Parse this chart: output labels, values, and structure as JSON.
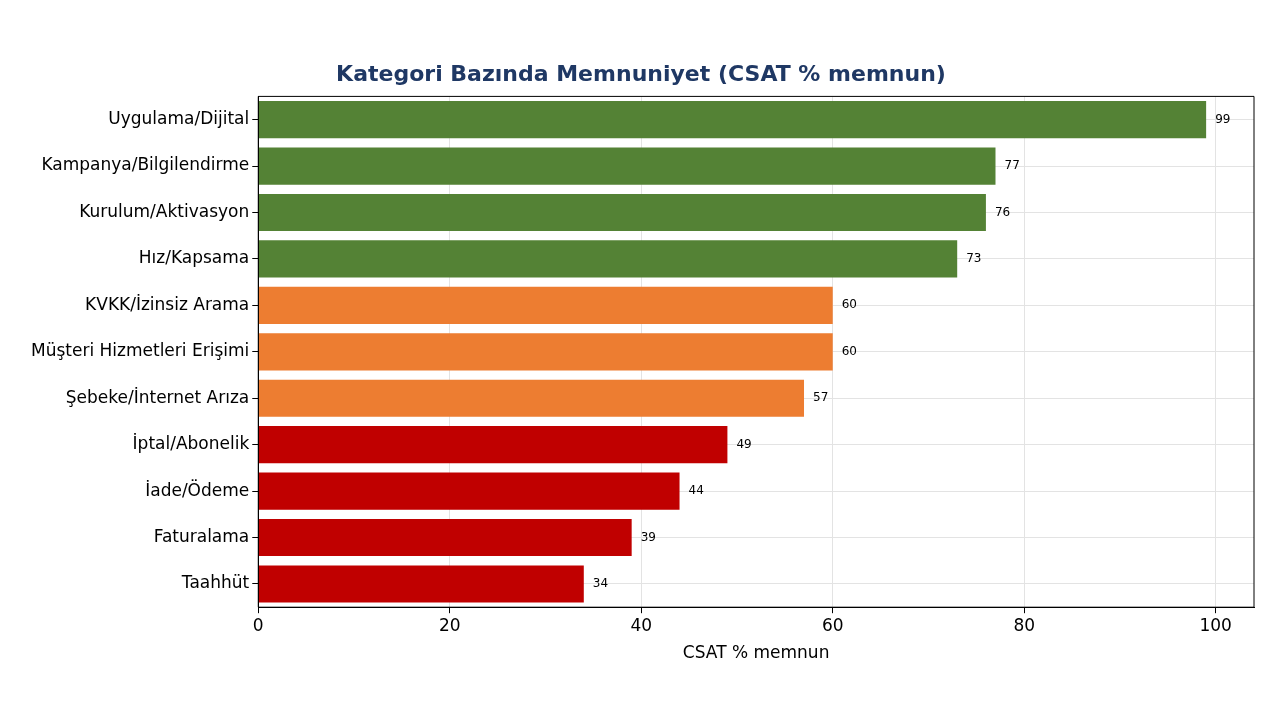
{
  "chart_data": {
    "type": "bar",
    "orientation": "horizontal",
    "title": "Kategori Bazında Memnuniyet (CSAT % memnun)",
    "xlabel": "CSAT % memnun",
    "categories": [
      "Uygulama/Dijital",
      "Kampanya/Bilgilendirme",
      "Kurulum/Aktivasyon",
      "Hız/Kapsama",
      "KVKK/İzinsiz Arama",
      "Müşteri Hizmetleri Erişimi",
      "Şebeke/İnternet Arıza",
      "İptal/Abonelik",
      "İade/Ödeme",
      "Faturalama",
      "Taahhüt"
    ],
    "values": [
      99,
      77,
      76,
      73,
      60,
      60,
      57,
      49,
      44,
      39,
      34
    ],
    "colors": [
      "#548235",
      "#548235",
      "#548235",
      "#548235",
      "#ed7d31",
      "#ed7d31",
      "#ed7d31",
      "#c00000",
      "#c00000",
      "#c00000",
      "#c00000"
    ],
    "xlim": [
      0,
      104
    ],
    "xticks": [
      0,
      20,
      40,
      60,
      80,
      100
    ],
    "grid": true,
    "data_labels": true,
    "legend": false
  }
}
